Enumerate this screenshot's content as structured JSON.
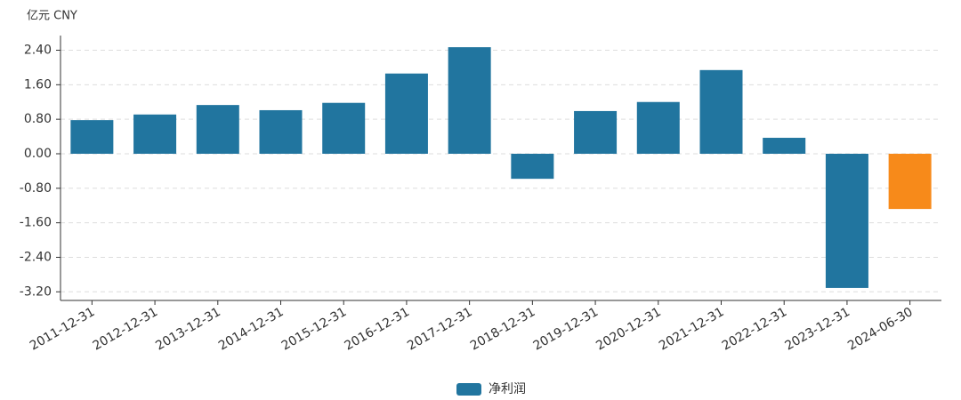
{
  "chart_data": {
    "type": "bar",
    "y_axis_label": "亿元  CNY",
    "categories": [
      "2011-12-31",
      "2012-12-31",
      "2013-12-31",
      "2014-12-31",
      "2015-12-31",
      "2016-12-31",
      "2017-12-31",
      "2018-12-31",
      "2019-12-31",
      "2020-12-31",
      "2021-12-31",
      "2022-12-31",
      "2023-12-31",
      "2024-06-30"
    ],
    "series": [
      {
        "name": "净利润",
        "color": "#21759f",
        "values": [
          0.78,
          0.91,
          1.13,
          1.01,
          1.18,
          1.86,
          2.47,
          -0.58,
          0.99,
          1.2,
          1.94,
          0.37,
          -3.11,
          -1.28
        ],
        "colors": [
          "#21759f",
          "#21759f",
          "#21759f",
          "#21759f",
          "#21759f",
          "#21759f",
          "#21759f",
          "#21759f",
          "#21759f",
          "#21759f",
          "#21759f",
          "#21759f",
          "#21759f",
          "#f78a1a"
        ]
      }
    ],
    "ylim": [
      -3.4,
      2.74
    ],
    "yticks": [
      {
        "value": -3.2,
        "label": "-3.20"
      },
      {
        "value": -2.4,
        "label": "-2.40"
      },
      {
        "value": -1.6,
        "label": "-1.60"
      },
      {
        "value": -0.8,
        "label": "-0.80"
      },
      {
        "value": 0,
        "label": "0.00"
      },
      {
        "value": 0.8,
        "label": "0.80"
      },
      {
        "value": 1.6,
        "label": "1.60"
      },
      {
        "value": 2.4,
        "label": "2.40"
      }
    ],
    "grid": true,
    "legend": "bottom"
  }
}
